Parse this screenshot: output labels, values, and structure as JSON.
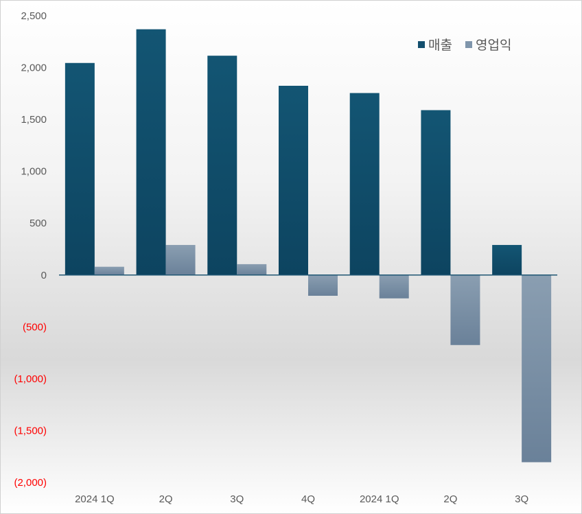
{
  "chart_data": {
    "type": "bar",
    "title": "",
    "xlabel": "",
    "ylabel": "",
    "categories": [
      "2024 1Q",
      "2Q",
      "3Q",
      "4Q",
      "2024 1Q",
      "2Q",
      "3Q"
    ],
    "series": [
      {
        "name": "매출",
        "color": "#134f6e",
        "values": [
          2045,
          2370,
          2115,
          1825,
          1755,
          1590,
          290
        ]
      },
      {
        "name": "영업익",
        "color": "#7f95ab",
        "values": [
          80,
          290,
          105,
          -200,
          -225,
          -675,
          -1805
        ]
      }
    ],
    "ylim": [
      -2000,
      2500
    ],
    "yticks": [
      2500,
      2000,
      1500,
      1000,
      500,
      0,
      -500,
      -1000,
      -1500,
      -2000
    ],
    "ytick_labels": [
      "2,500",
      "2,000",
      "1,500",
      "1,000",
      "500",
      "0",
      "(500)",
      "(1,000)",
      "(1,500)",
      "(2,000)"
    ],
    "negative_label_color": "#ff0000",
    "grid": false,
    "legend_position": "top-right"
  }
}
